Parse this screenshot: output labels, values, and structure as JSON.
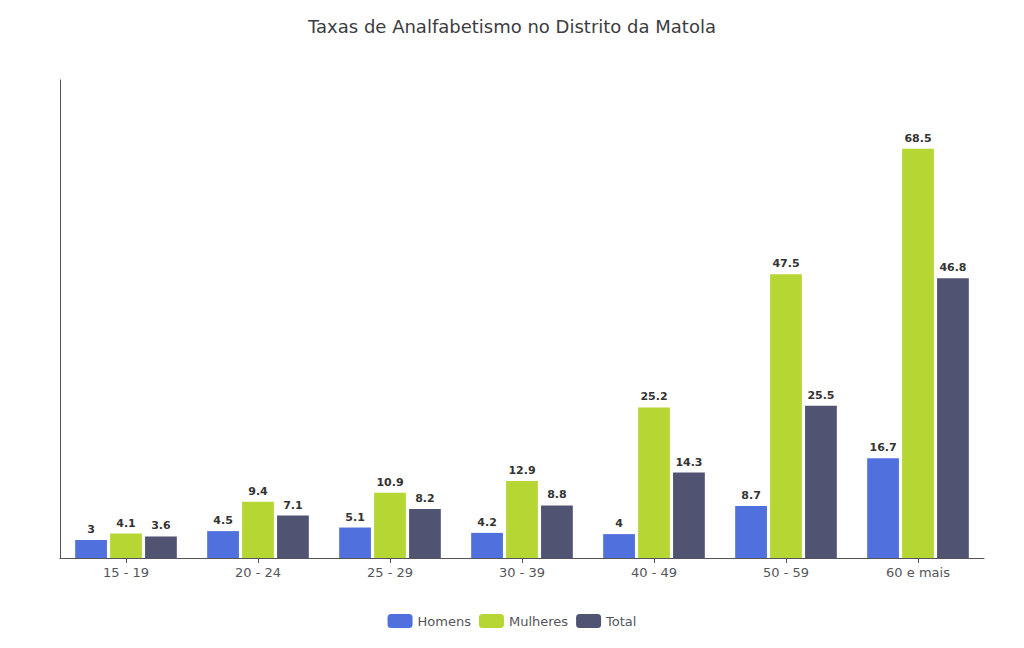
{
  "chart_data": {
    "type": "bar",
    "title": "Taxas de Analfabetismo no Distrito da Matola",
    "categories": [
      "15 - 19",
      "20 - 24",
      "25 - 29",
      "30 - 39",
      "40 - 49",
      "50 - 59",
      "60 e mais"
    ],
    "series": [
      {
        "name": "Homens",
        "values": [
          3,
          4.5,
          5.1,
          4.2,
          4,
          8.7,
          16.7
        ]
      },
      {
        "name": "Mulheres",
        "values": [
          4.1,
          9.4,
          10.9,
          12.9,
          25.2,
          47.5,
          68.5
        ]
      },
      {
        "name": "Total",
        "values": [
          3.6,
          7.1,
          8.2,
          8.8,
          14.3,
          25.5,
          46.8
        ]
      }
    ],
    "ylim": [
      0,
      80
    ],
    "grid": false,
    "legend": "bottom",
    "data_labels": true,
    "tick_labels": "x"
  }
}
